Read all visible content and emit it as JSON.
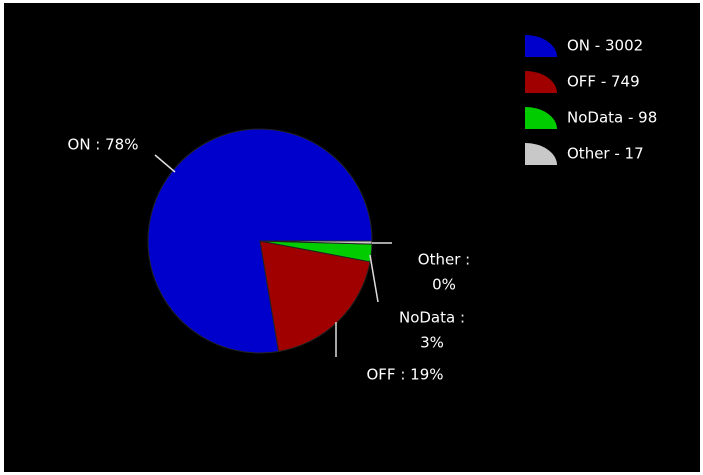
{
  "chart_data": {
    "type": "pie",
    "categories": [
      "ON",
      "OFF",
      "NoData",
      "Other"
    ],
    "values": [
      3002,
      749,
      98,
      17
    ],
    "colors": [
      "#0000cc",
      "#a00000",
      "#00cc00",
      "#c8c8c8"
    ],
    "legend": [
      "ON - 3002",
      "OFF - 749",
      "NoData - 98",
      "Other - 17"
    ],
    "slice_labels": [
      [
        "ON : 78%"
      ],
      [
        "OFF : 19%"
      ],
      [
        "NoData :",
        "3%"
      ],
      [
        "Other :",
        "0%"
      ]
    ],
    "legend_position": "upper right"
  }
}
